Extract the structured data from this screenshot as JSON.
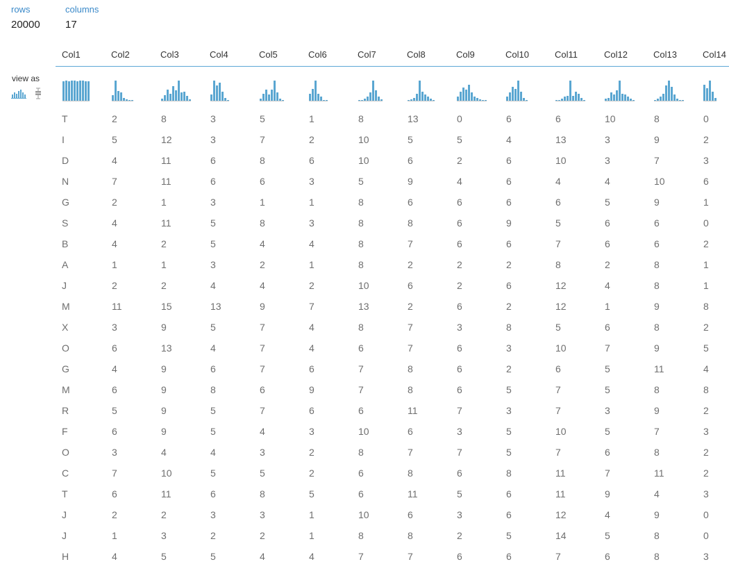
{
  "summary": {
    "rows_label": "rows",
    "rows_value": "20000",
    "columns_label": "columns",
    "columns_value": "17"
  },
  "view_as": {
    "label": "view as",
    "options": [
      {
        "icon": "histogram-icon",
        "selected": true
      },
      {
        "icon": "boxplot-icon",
        "selected": false
      }
    ]
  },
  "colors": {
    "label_blue": "#3a89c9",
    "histogram_bar": "#5aa6d1",
    "header_rule": "#5ba7d6",
    "boxplot_icon": "#9a9a9a"
  },
  "columns": [
    {
      "name": "Col1",
      "histogram": [
        0.97,
        1.0,
        0.98,
        0.99,
        1.0,
        0.97,
        0.99,
        1.0,
        0.98,
        0.97
      ]
    },
    {
      "name": "Col2",
      "histogram": [
        0.27,
        1.0,
        0.47,
        0.4,
        0.13,
        0.07,
        0.03,
        0.03
      ]
    },
    {
      "name": "Col3",
      "histogram": [
        0.1,
        0.28,
        0.55,
        0.35,
        0.72,
        0.5,
        1.0,
        0.4,
        0.45,
        0.25,
        0.07
      ]
    },
    {
      "name": "Col4",
      "histogram": [
        0.3,
        1.0,
        0.75,
        0.9,
        0.45,
        0.15,
        0.05
      ]
    },
    {
      "name": "Col5",
      "histogram": [
        0.1,
        0.35,
        0.55,
        0.3,
        0.55,
        1.0,
        0.4,
        0.1,
        0.03
      ]
    },
    {
      "name": "Col6",
      "histogram": [
        0.35,
        0.6,
        1.0,
        0.35,
        0.2,
        0.05,
        0.03
      ]
    },
    {
      "name": "Col7",
      "histogram": [
        0.03,
        0.05,
        0.1,
        0.2,
        0.4,
        1.0,
        0.5,
        0.2,
        0.07
      ]
    },
    {
      "name": "Col8",
      "histogram": [
        0.03,
        0.08,
        0.15,
        0.35,
        1.0,
        0.45,
        0.3,
        0.2,
        0.1,
        0.05
      ]
    },
    {
      "name": "Col9",
      "histogram": [
        0.2,
        0.45,
        0.65,
        0.55,
        0.8,
        0.4,
        0.2,
        0.15,
        0.08,
        0.05,
        0.03
      ]
    },
    {
      "name": "Col10",
      "histogram": [
        0.2,
        0.4,
        0.7,
        0.6,
        1.0,
        0.45,
        0.15,
        0.05
      ]
    },
    {
      "name": "Col11",
      "histogram": [
        0.03,
        0.05,
        0.1,
        0.2,
        0.25,
        1.0,
        0.25,
        0.45,
        0.35,
        0.15,
        0.05
      ]
    },
    {
      "name": "Col12",
      "histogram": [
        0.1,
        0.15,
        0.4,
        0.3,
        0.5,
        1.0,
        0.35,
        0.3,
        0.2,
        0.1,
        0.05
      ]
    },
    {
      "name": "Col13",
      "histogram": [
        0.05,
        0.1,
        0.2,
        0.35,
        0.75,
        1.0,
        0.7,
        0.3,
        0.1,
        0.05,
        0.03
      ]
    },
    {
      "name": "Col14",
      "histogram": [
        0.8,
        0.62,
        1.0,
        0.45,
        0.15
      ]
    }
  ],
  "rows": [
    [
      "T",
      2,
      8,
      3,
      5,
      1,
      8,
      13,
      0,
      6,
      6,
      10,
      8,
      0
    ],
    [
      "I",
      5,
      12,
      3,
      7,
      2,
      10,
      5,
      5,
      4,
      13,
      3,
      9,
      2
    ],
    [
      "D",
      4,
      11,
      6,
      8,
      6,
      10,
      6,
      2,
      6,
      10,
      3,
      7,
      3
    ],
    [
      "N",
      7,
      11,
      6,
      6,
      3,
      5,
      9,
      4,
      6,
      4,
      4,
      10,
      6
    ],
    [
      "G",
      2,
      1,
      3,
      1,
      1,
      8,
      6,
      6,
      6,
      6,
      5,
      9,
      1
    ],
    [
      "S",
      4,
      11,
      5,
      8,
      3,
      8,
      8,
      6,
      9,
      5,
      6,
      6,
      0
    ],
    [
      "B",
      4,
      2,
      5,
      4,
      4,
      8,
      7,
      6,
      6,
      7,
      6,
      6,
      2
    ],
    [
      "A",
      1,
      1,
      3,
      2,
      1,
      8,
      2,
      2,
      2,
      8,
      2,
      8,
      1
    ],
    [
      "J",
      2,
      2,
      4,
      4,
      2,
      10,
      6,
      2,
      6,
      12,
      4,
      8,
      1
    ],
    [
      "M",
      11,
      15,
      13,
      9,
      7,
      13,
      2,
      6,
      2,
      12,
      1,
      9,
      8
    ],
    [
      "X",
      3,
      9,
      5,
      7,
      4,
      8,
      7,
      3,
      8,
      5,
      6,
      8,
      2
    ],
    [
      "O",
      6,
      13,
      4,
      7,
      4,
      6,
      7,
      6,
      3,
      10,
      7,
      9,
      5
    ],
    [
      "G",
      4,
      9,
      6,
      7,
      6,
      7,
      8,
      6,
      2,
      6,
      5,
      11,
      4
    ],
    [
      "M",
      6,
      9,
      8,
      6,
      9,
      7,
      8,
      6,
      5,
      7,
      5,
      8,
      8
    ],
    [
      "R",
      5,
      9,
      5,
      7,
      6,
      6,
      11,
      7,
      3,
      7,
      3,
      9,
      2
    ],
    [
      "F",
      6,
      9,
      5,
      4,
      3,
      10,
      6,
      3,
      5,
      10,
      5,
      7,
      3
    ],
    [
      "O",
      3,
      4,
      4,
      3,
      2,
      8,
      7,
      7,
      5,
      7,
      6,
      8,
      2
    ],
    [
      "C",
      7,
      10,
      5,
      5,
      2,
      6,
      8,
      6,
      8,
      11,
      7,
      11,
      2
    ],
    [
      "T",
      6,
      11,
      6,
      8,
      5,
      6,
      11,
      5,
      6,
      11,
      9,
      4,
      3
    ],
    [
      "J",
      2,
      2,
      3,
      3,
      1,
      10,
      6,
      3,
      6,
      12,
      4,
      9,
      0
    ],
    [
      "J",
      1,
      3,
      2,
      2,
      1,
      8,
      8,
      2,
      5,
      14,
      5,
      8,
      0
    ],
    [
      "H",
      4,
      5,
      5,
      4,
      4,
      7,
      7,
      6,
      6,
      7,
      6,
      8,
      3
    ]
  ]
}
